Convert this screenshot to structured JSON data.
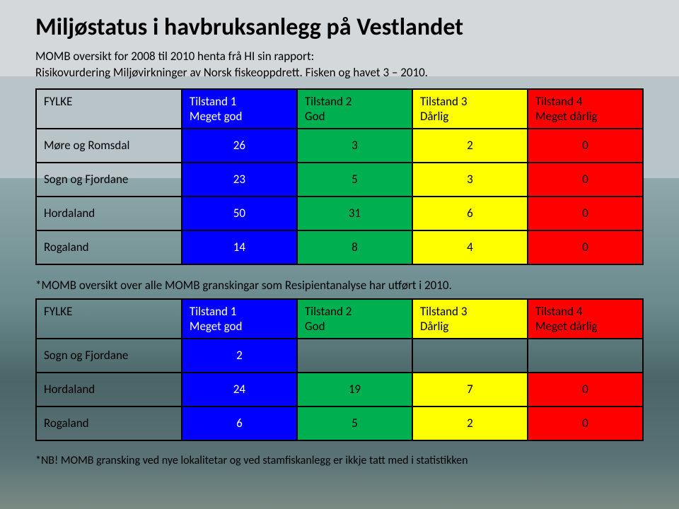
{
  "title": "Miljøstatus i havbruksanlegg på Vestlandet",
  "subtitle": "MOMB oversikt for 2008 til 2010 henta frå HI sin rapport:\nRisikovurdering Miljøvirkninger av Norsk fiskeoppdrett. Fisken og havet 3 – 2010.",
  "columns": {
    "fylke": "FYLKE",
    "t1a": "Tilstand 1",
    "t1b": "Meget god",
    "t2a": "Tilstand 2",
    "t2b": "God",
    "t3a": "Tilstand 3",
    "t3b": "Dårlig",
    "t4a": "Tilstand 4",
    "t4b": "Meget dårlig"
  },
  "colors": {
    "blue": "#0000ff",
    "green": "#00b050",
    "yellow": "#ffff00",
    "red": "#ff0000"
  },
  "table1": {
    "rows": [
      {
        "label": "Møre og Romsdal",
        "v": [
          "26",
          "3",
          "2",
          "0"
        ]
      },
      {
        "label": "Sogn og Fjordane",
        "v": [
          "23",
          "5",
          "3",
          "0"
        ]
      },
      {
        "label": "Hordaland",
        "v": [
          "50",
          "31",
          "6",
          "0"
        ]
      },
      {
        "label": "Rogaland",
        "v": [
          "14",
          "8",
          "4",
          "0"
        ]
      }
    ]
  },
  "note": "*MOMB oversikt over alle MOMB granskingar som Resipientanalyse har utført i 2010.",
  "table2": {
    "rows": [
      {
        "label": "Sogn og Fjordane",
        "v": [
          "2",
          "",
          "",
          ""
        ]
      },
      {
        "label": "Hordaland",
        "v": [
          "24",
          "19",
          "7",
          "0"
        ]
      },
      {
        "label": "Rogaland",
        "v": [
          "6",
          "5",
          "2",
          "0"
        ]
      }
    ]
  },
  "footnote": "*NB! MOMB gransking ved nye lokalitetar og ved stamfiskanlegg er ikkje tatt med i statistikken"
}
